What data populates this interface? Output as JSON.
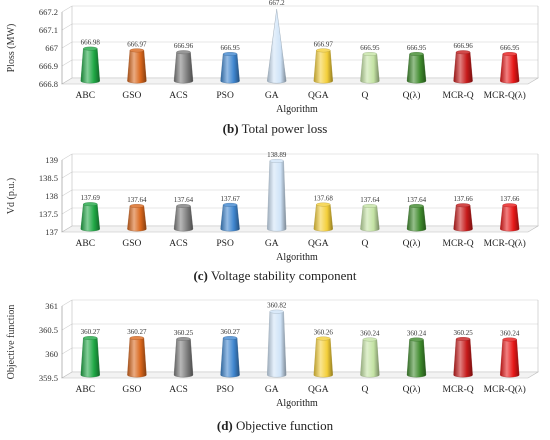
{
  "charts": [
    {
      "caption_label": "(b)",
      "caption_text": " Total power loss",
      "chart_data": {
        "type": "bar",
        "title": "",
        "xlabel": "Algorithm",
        "ylabel": "Ploss (MW)",
        "ylim": [
          666.8,
          667.2
        ],
        "yticks": [
          "666.8",
          "666.9",
          "667",
          "667.1",
          "667.2"
        ],
        "categories": [
          "ABC",
          "GSO",
          "ACS",
          "PSO",
          "GA",
          "QGA",
          "Q",
          "Q(λ)",
          "MCR-Q",
          "MCR-Q(λ)"
        ],
        "values": [
          666.98,
          666.97,
          666.96,
          666.95,
          667.2,
          666.97,
          666.95,
          666.95,
          666.96,
          666.95
        ],
        "value_labels": [
          "666.98",
          "666.97",
          "666.96",
          "666.95",
          "667.2",
          "666.97",
          "666.95",
          "666.95",
          "666.96",
          "666.95"
        ]
      }
    },
    {
      "caption_label": "(c)",
      "caption_text": " Voltage stability component",
      "chart_data": {
        "type": "bar",
        "title": "",
        "xlabel": "Algorithm",
        "ylabel": "Vd (p.u.)",
        "ylim": [
          137,
          139
        ],
        "yticks": [
          "137",
          "137.5",
          "138",
          "138.5",
          "139"
        ],
        "categories": [
          "ABC",
          "GSO",
          "ACS",
          "PSO",
          "GA",
          "QGA",
          "Q",
          "Q(λ)",
          "MCR-Q",
          "MCR-Q(λ)"
        ],
        "values": [
          137.69,
          137.64,
          137.64,
          137.67,
          138.89,
          137.68,
          137.64,
          137.64,
          137.66,
          137.66
        ],
        "value_labels": [
          "137.69",
          "137.64",
          "137.64",
          "137.67",
          "138.89",
          "137.68",
          "137.64",
          "137.64",
          "137.66",
          "137.66"
        ]
      }
    },
    {
      "caption_label": "(d)",
      "caption_text": " Objective function",
      "chart_data": {
        "type": "bar",
        "title": "",
        "xlabel": "Algorithm",
        "ylabel": "Objective function",
        "ylim": [
          359.5,
          361
        ],
        "yticks": [
          "359.5",
          "360",
          "360.5",
          "361"
        ],
        "categories": [
          "ABC",
          "GSO",
          "ACS",
          "PSO",
          "GA",
          "QGA",
          "Q",
          "Q(λ)",
          "MCR-Q",
          "MCR-Q(λ)"
        ],
        "values": [
          360.27,
          360.27,
          360.25,
          360.27,
          360.82,
          360.26,
          360.24,
          360.24,
          360.25,
          360.24
        ],
        "value_labels": [
          "360.27",
          "360.27",
          "360.25",
          "360.27",
          "360.82",
          "360.26",
          "360.24",
          "360.24",
          "360.25",
          "360.24"
        ]
      }
    }
  ],
  "colors": [
    "#1fa845",
    "#d9661b",
    "#7d7d7d",
    "#3f86cf",
    "#cfe3f7",
    "#f4cf3a",
    "#c4e3a4",
    "#3e8a2c",
    "#c61a1a",
    "#e81818"
  ]
}
